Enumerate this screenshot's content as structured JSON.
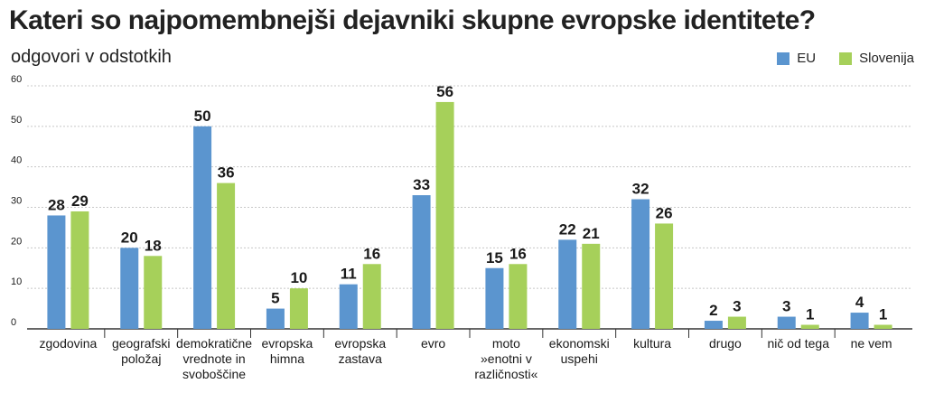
{
  "colors": {
    "eu": "#5b95cf",
    "slovenija": "#a6d05a",
    "grid": "#c8c8c8",
    "axis": "#333333",
    "text": "#1a1a1a"
  },
  "chart_data": {
    "type": "bar",
    "title": "Kateri so najpomembnejši dejavniki skupne evropske identitete?",
    "subtitle": "odgovori v odstotkih",
    "xlabel": "",
    "ylabel": "",
    "ylim": [
      0,
      60
    ],
    "yticks": [
      "0",
      "10",
      "20",
      "30",
      "40",
      "50",
      "60"
    ],
    "grid": true,
    "legend_position": "top-right",
    "categories": [
      [
        "zgodovina"
      ],
      [
        "geografski",
        "položaj"
      ],
      [
        "demokratične",
        "vrednote in",
        "svoboščine"
      ],
      [
        "evropska",
        "himna"
      ],
      [
        "evropska",
        "zastava"
      ],
      [
        "evro"
      ],
      [
        "moto",
        "»enotni v",
        "različnosti«"
      ],
      [
        "ekonomski",
        "uspehi"
      ],
      [
        "kultura"
      ],
      [
        "drugo"
      ],
      [
        "nič od tega"
      ],
      [
        "ne vem"
      ]
    ],
    "series": [
      {
        "name": "EU",
        "values": [
          28,
          20,
          50,
          5,
          11,
          33,
          15,
          22,
          32,
          2,
          3,
          4
        ]
      },
      {
        "name": "Slovenija",
        "values": [
          29,
          18,
          36,
          10,
          16,
          56,
          16,
          21,
          26,
          3,
          1,
          1
        ]
      }
    ]
  }
}
